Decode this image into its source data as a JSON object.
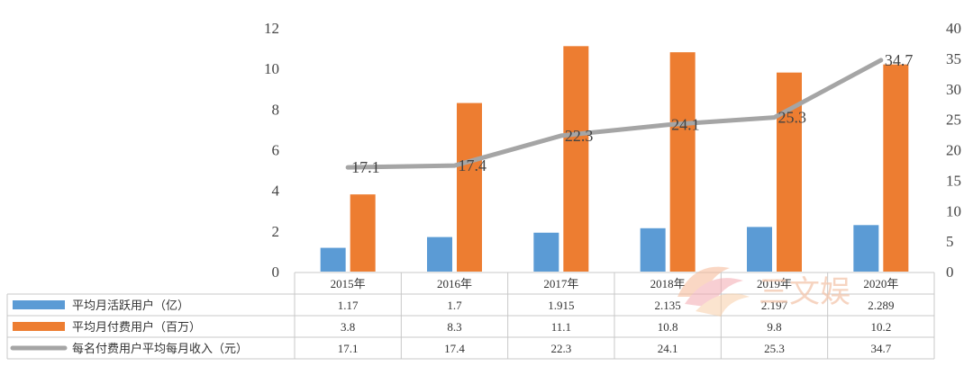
{
  "chart_data": {
    "type": "bar",
    "categories": [
      "2015年",
      "2016年",
      "2017年",
      "2018年",
      "2019年",
      "2020年"
    ],
    "series": [
      {
        "name": "平均月活跃用户（亿）",
        "kind": "bar",
        "axis": "left",
        "color": "#5b9bd5",
        "values": [
          1.17,
          1.7,
          1.915,
          2.135,
          2.197,
          2.289
        ],
        "display": [
          "1.17",
          "1.7",
          "1.915",
          "2.135",
          "2.197",
          "2.289"
        ]
      },
      {
        "name": "平均月付费用户（百万）",
        "kind": "bar",
        "axis": "left",
        "color": "#ed7d31",
        "values": [
          3.8,
          8.3,
          11.1,
          10.8,
          9.8,
          10.2
        ],
        "display": [
          "3.8",
          "8.3",
          "11.1",
          "10.8",
          "9.8",
          "10.2"
        ]
      },
      {
        "name": "每名付费用户平均每月收入（元）",
        "kind": "line",
        "axis": "right",
        "color": "#a5a5a5",
        "values": [
          17.1,
          17.4,
          22.3,
          24.1,
          25.3,
          34.7
        ],
        "display": [
          "17.1",
          "17.4",
          "22.3",
          "24.1",
          "25.3",
          "34.7"
        ]
      }
    ],
    "y_left": {
      "min": 0,
      "max": 12,
      "ticks": [
        "0",
        "2",
        "4",
        "6",
        "8",
        "10",
        "12"
      ]
    },
    "y_right": {
      "min": 0,
      "max": 40,
      "ticks": [
        "0",
        "5",
        "10",
        "15",
        "20",
        "25",
        "30",
        "35",
        "40"
      ]
    },
    "grid": false,
    "legend": "data-table"
  },
  "watermark": {
    "text": "三文娱"
  }
}
